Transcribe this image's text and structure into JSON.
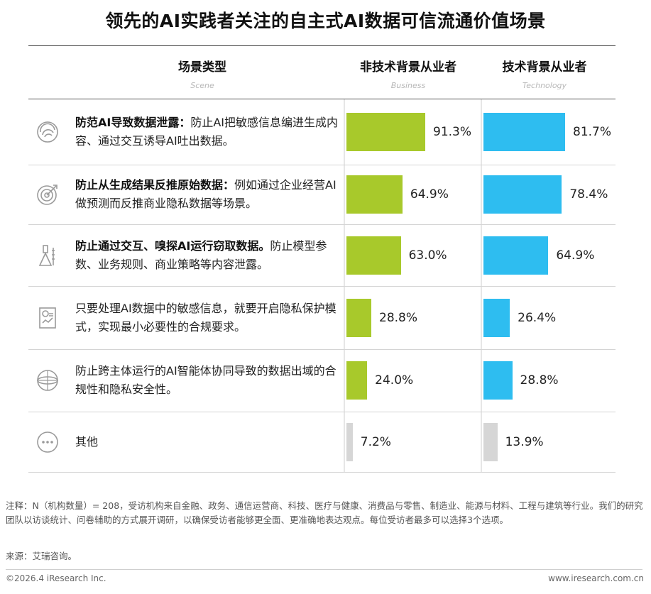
{
  "title": "领先的AI实践者关注的自主式AI数据可信流通价值场景",
  "header": {
    "col1": "场景类型",
    "col1_sub": "Scene",
    "col2": "非技术背景从业者",
    "col2_sub": "Business",
    "col3": "技术背景从业者",
    "col3_sub": "Technology"
  },
  "colors": {
    "business": "#a8c92b",
    "technology": "#2ebdf0",
    "other": "#d6d6d6",
    "icon": "#9a9a9a"
  },
  "chart_data": {
    "type": "bar",
    "orientation": "horizontal",
    "title": "领先的AI实践者关注的自主式AI数据可信流通价值场景",
    "categories": [
      "防范AI导致数据泄露：防止AI把敏感信息编进生成内容、通过交互诱导AI吐出数据。",
      "防止从生成结果反推原始数据：例如通过企业经营AI做预测而反推商业隐私数据等场景。",
      "防止通过交互、嗅探AI运行窃取数据。防止模型参数、业务规则、商业策略等内容泄露。",
      "只要处理AI数据中的敏感信息，就要开启隐私保护模式，实现最小必要性的合规要求。",
      "防止跨主体运行的AI智能体协同导致的数据出域的合规性和隐私安全性。",
      "其他"
    ],
    "series": [
      {
        "name": "非技术背景从业者",
        "values": [
          91.3,
          64.9,
          63.0,
          28.8,
          24.0,
          7.2
        ]
      },
      {
        "name": "技术背景从业者",
        "values": [
          81.7,
          78.4,
          64.9,
          26.4,
          28.8,
          13.9
        ]
      }
    ],
    "value_labels": {
      "business": [
        "91.3%",
        "64.9%",
        "63.0%",
        "28.8%",
        "24.0%",
        "7.2%"
      ],
      "technology": [
        "81.7%",
        "78.4%",
        "64.9%",
        "26.4%",
        "28.8%",
        "13.9%"
      ]
    },
    "xlim": [
      0,
      100
    ]
  },
  "rows": [
    {
      "icon": "swirl-icon",
      "bold": "防范AI导致数据泄露：",
      "text": "防止AI把敏感信息编进生成内容、通过交互诱导AI吐出数据。"
    },
    {
      "icon": "target-icon",
      "bold": "防止从生成结果反推原始数据：",
      "text": "例如通过企业经营AI做预测而反推商业隐私数据等场景。"
    },
    {
      "icon": "lab-tools-icon",
      "bold": "防止通过交互、嗅探AI运行窃取数据。",
      "text": "防止模型参数、业务规则、商业策略等内容泄露。"
    },
    {
      "icon": "report-chart-icon",
      "bold": "",
      "text": "只要处理AI数据中的敏感信息，就要开启隐私保护模式，实现最小必要性的合规要求。"
    },
    {
      "icon": "globe-icon",
      "bold": "",
      "text": "防止跨主体运行的AI智能体协同导致的数据出域的合规性和隐私安全性。"
    },
    {
      "icon": "more-dots-icon",
      "bold": "",
      "text": "其他"
    }
  ],
  "note": "注释：N（机构数量）= 208，受访机构来自金融、政务、通信运营商、科技、医疗与健康、消费品与零售、制造业、能源与材料、工程与建筑等行业。我们的研究团队以访谈统计、问卷辅助的方式展开调研，以确保受访者能够更全面、更准确地表达观点。每位受访者最多可以选择3个选项。",
  "source": "来源：艾瑞咨询。",
  "footer": {
    "left": "©2026.4 iResearch Inc.",
    "right": "www.iresearch.com.cn"
  }
}
